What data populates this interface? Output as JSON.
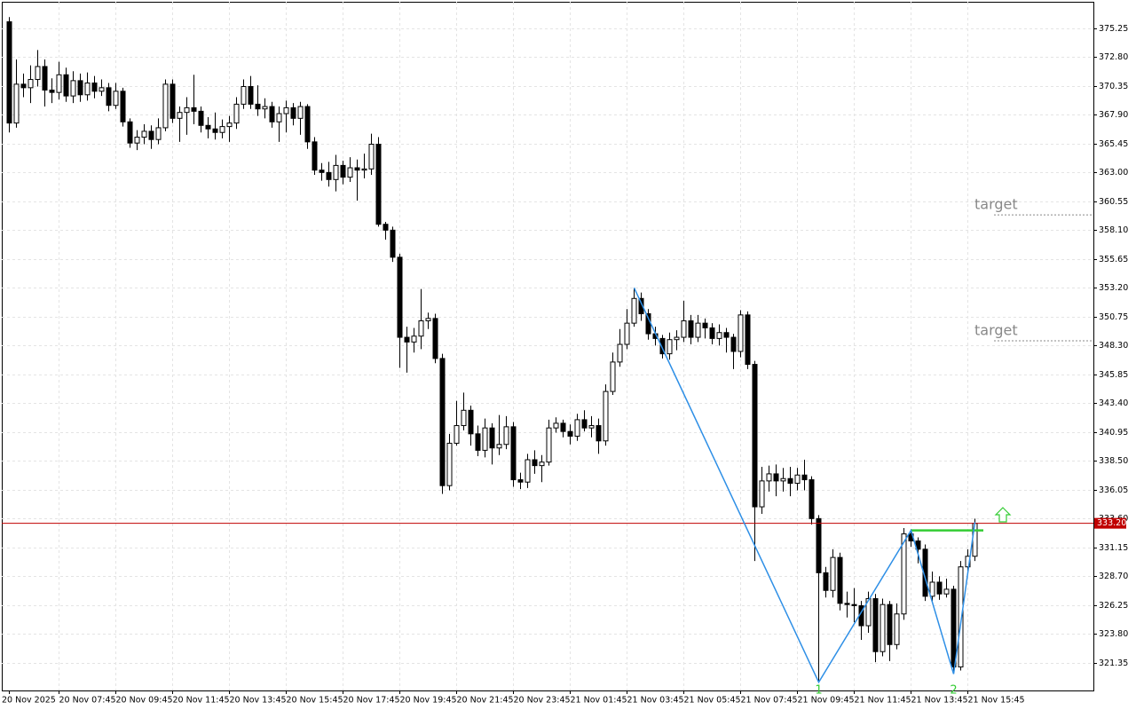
{
  "chart_data": {
    "type": "candlestick",
    "categories": [
      "20 Nov 2025",
      null,
      null,
      null,
      null,
      null,
      null,
      "20 Nov 07:45",
      null,
      null,
      null,
      null,
      null,
      null,
      null,
      "20 Nov 09:45",
      null,
      null,
      null,
      null,
      null,
      null,
      null,
      "20 Nov 11:45",
      null,
      null,
      null,
      null,
      null,
      null,
      null,
      "20 Nov 13:45",
      null,
      null,
      null,
      null,
      null,
      null,
      null,
      "20 Nov 15:45",
      null,
      null,
      null,
      null,
      null,
      null,
      null,
      "20 Nov 17:45",
      null,
      null,
      null,
      null,
      null,
      null,
      null,
      "20 Nov 19:45",
      null,
      null,
      null,
      null,
      null,
      null,
      null,
      "20 Nov 21:45",
      null,
      null,
      null,
      null,
      null,
      null,
      null,
      "20 Nov 23:45",
      null,
      null,
      null,
      null,
      null,
      null,
      null,
      "21 Nov 01:45",
      null,
      null,
      null,
      null,
      null,
      null,
      null,
      "21 Nov 03:45",
      null,
      null,
      null,
      null,
      null,
      null,
      null,
      "21 Nov 05:45",
      null,
      null,
      null,
      null,
      null,
      null,
      null,
      "21 Nov 07:45",
      null,
      null,
      null,
      null,
      null,
      null,
      null,
      "21 Nov 09:45",
      null,
      null,
      null,
      null,
      null,
      null,
      null,
      "21 Nov 11:45",
      null,
      null,
      null,
      null,
      null,
      null,
      null,
      "21 Nov 13:45",
      null,
      null,
      null,
      null,
      null,
      null,
      null,
      "21 Nov 15:45",
      null
    ],
    "open": [
      375.8,
      367.2,
      370.5,
      370.2,
      370.9,
      372.0,
      370.0,
      369.8,
      371.3,
      369.5,
      370.8,
      369.6,
      370.6,
      369.9,
      370.2,
      368.7,
      369.9,
      367.3,
      365.5,
      366.0,
      366.5,
      365.8,
      366.8,
      370.5,
      367.6,
      368.1,
      368.5,
      368.2,
      367.0,
      366.7,
      366.4,
      366.9,
      367.2,
      368.8,
      370.3,
      368.8,
      368.4,
      368.6,
      367.3,
      368.0,
      368.5,
      367.6,
      368.6,
      365.6,
      363.2,
      363.0,
      362.4,
      363.6,
      362.6,
      363.4,
      363.2,
      363.3,
      365.4,
      358.6,
      358.1,
      355.8,
      349.0,
      348.6,
      349.1,
      350.4,
      350.6,
      347.2,
      336.4,
      340.0,
      341.5,
      342.8,
      340.8,
      339.4,
      341.3,
      339.6,
      339.9,
      341.4,
      336.9,
      336.7,
      338.6,
      338.1,
      338.4,
      341.3,
      341.7,
      341.0,
      340.6,
      342.0,
      341.3,
      341.5,
      340.2,
      344.4,
      346.9,
      348.4,
      350.2,
      352.3,
      351.0,
      349.3,
      348.9,
      347.6,
      348.8,
      349.0,
      350.4,
      349.0,
      350.2,
      349.8,
      348.9,
      349.4,
      349.0,
      347.8,
      350.9,
      346.7,
      334.6,
      336.8,
      337.4,
      336.8,
      337.0,
      336.6,
      337.3,
      336.9,
      333.6,
      329.0,
      327.5,
      330.3,
      326.4,
      326.3,
      326.2,
      324.5,
      326.8,
      322.3,
      326.3,
      322.9,
      325.5,
      332.3,
      331.7,
      331.0,
      327.0,
      328.2,
      327.2,
      327.6,
      321.0,
      329.5,
      330.4
    ],
    "high": [
      376.2,
      372.6,
      371.4,
      372.1,
      373.4,
      372.6,
      371.0,
      372.4,
      371.9,
      371.6,
      371.4,
      371.5,
      371.2,
      370.9,
      370.6,
      370.6,
      370.2,
      367.6,
      366.6,
      367.1,
      367.0,
      367.6,
      370.9,
      370.9,
      368.6,
      369.4,
      371.3,
      368.6,
      367.7,
      368.1,
      367.5,
      367.8,
      369.4,
      370.9,
      371.2,
      370.4,
      369.3,
      369.0,
      368.6,
      369.1,
      368.9,
      369.0,
      368.8,
      366.0,
      363.8,
      363.9,
      364.5,
      364.0,
      364.3,
      364.1,
      364.6,
      366.3,
      366.0,
      358.8,
      358.4,
      356.1,
      349.9,
      349.8,
      353.1,
      351.1,
      351.0,
      347.6,
      340.8,
      343.6,
      344.3,
      343.2,
      341.5,
      342.1,
      341.7,
      342.4,
      342.3,
      341.8,
      337.5,
      339.1,
      339.4,
      339.0,
      342.0,
      342.2,
      342.0,
      341.6,
      342.5,
      342.8,
      342.3,
      342.1,
      345.0,
      347.7,
      349.7,
      351.4,
      353.2,
      352.8,
      351.4,
      349.9,
      349.2,
      349.4,
      349.6,
      352.1,
      350.9,
      350.9,
      350.6,
      350.2,
      350.1,
      349.8,
      349.3,
      351.3,
      351.2,
      347.0,
      338.0,
      338.1,
      338.2,
      337.9,
      338.0,
      337.9,
      338.6,
      337.2,
      333.9,
      329.5,
      331.0,
      330.7,
      327.4,
      327.7,
      326.6,
      327.4,
      327.2,
      326.8,
      326.6,
      326.4,
      332.8,
      332.7,
      332.0,
      331.4,
      329.1,
      328.7,
      328.5,
      327.9,
      330.0,
      331.0,
      333.6
    ],
    "low": [
      366.4,
      366.8,
      369.4,
      368.9,
      370.3,
      368.6,
      368.9,
      369.2,
      369.0,
      368.9,
      369.0,
      369.1,
      369.3,
      369.5,
      368.2,
      368.4,
      366.9,
      365.1,
      364.9,
      365.4,
      365.0,
      365.4,
      366.5,
      367.2,
      365.6,
      366.2,
      367.1,
      366.4,
      365.9,
      365.8,
      365.9,
      365.6,
      366.7,
      368.4,
      368.4,
      367.8,
      367.6,
      366.8,
      365.6,
      366.4,
      367.0,
      366.2,
      365.0,
      362.8,
      362.3,
      361.8,
      361.4,
      362.0,
      362.2,
      360.6,
      362.5,
      362.8,
      358.4,
      357.3,
      355.4,
      346.4,
      346.0,
      347.7,
      348.0,
      349.7,
      346.8,
      335.7,
      336.0,
      339.8,
      341.1,
      339.8,
      338.9,
      338.8,
      338.2,
      339.0,
      339.5,
      336.3,
      336.1,
      336.2,
      337.4,
      336.7,
      338.1,
      340.9,
      340.5,
      339.9,
      340.2,
      341.0,
      340.5,
      339.1,
      339.8,
      344.1,
      346.5,
      348.0,
      349.9,
      350.4,
      348.8,
      348.3,
      347.2,
      347.1,
      347.9,
      348.6,
      348.4,
      348.6,
      348.9,
      348.4,
      348.3,
      347.7,
      346.3,
      347.3,
      346.3,
      330.0,
      334.0,
      335.9,
      335.5,
      335.9,
      335.5,
      336.0,
      336.0,
      333.1,
      319.7,
      326.9,
      326.9,
      325.8,
      325.2,
      324.8,
      323.3,
      323.9,
      321.4,
      321.9,
      321.5,
      322.5,
      325.0,
      331.2,
      329.8,
      326.6,
      326.5,
      326.7,
      326.9,
      320.4,
      320.7,
      329.1,
      330.0
    ],
    "close": [
      367.2,
      370.5,
      370.2,
      370.9,
      372.0,
      370.0,
      369.8,
      371.3,
      369.5,
      370.8,
      369.6,
      370.6,
      369.9,
      370.2,
      368.7,
      369.9,
      367.3,
      365.5,
      366.0,
      366.5,
      365.8,
      366.8,
      370.5,
      367.6,
      368.1,
      368.5,
      368.2,
      367.0,
      366.7,
      366.4,
      366.9,
      367.2,
      368.8,
      370.3,
      368.8,
      368.4,
      368.6,
      367.3,
      368.0,
      368.5,
      367.6,
      368.6,
      365.6,
      363.2,
      363.0,
      362.4,
      363.6,
      362.6,
      363.4,
      363.2,
      363.3,
      365.4,
      358.6,
      358.1,
      355.8,
      349.0,
      348.6,
      349.1,
      350.4,
      350.6,
      347.2,
      336.4,
      340.0,
      341.5,
      342.8,
      340.8,
      339.4,
      341.3,
      339.6,
      339.9,
      341.4,
      336.9,
      336.7,
      338.6,
      338.1,
      338.4,
      341.3,
      341.7,
      341.0,
      340.6,
      342.0,
      341.3,
      341.5,
      340.2,
      344.4,
      346.9,
      348.4,
      350.2,
      352.3,
      351.0,
      349.3,
      348.9,
      347.6,
      348.8,
      349.0,
      350.4,
      349.0,
      350.2,
      349.8,
      348.9,
      349.4,
      349.0,
      347.8,
      350.9,
      346.7,
      334.6,
      336.8,
      337.4,
      336.8,
      337.0,
      336.6,
      337.3,
      336.9,
      333.6,
      329.0,
      327.5,
      330.3,
      326.4,
      326.3,
      326.2,
      324.5,
      326.8,
      322.3,
      326.3,
      322.9,
      325.5,
      332.3,
      331.7,
      331.0,
      327.0,
      328.2,
      327.2,
      327.6,
      321.0,
      329.5,
      330.4,
      333.2
    ],
    "ylim": [
      319.0,
      377.5
    ],
    "yticks": [
      375.25,
      {
        "value": 372.8,
        "label": "372.80"
      },
      370.35,
      {
        "value": 367.9,
        "label": "367.90"
      },
      365.45,
      {
        "value": 363.0,
        "label": "363.00"
      },
      360.55,
      {
        "value": 358.1,
        "label": "358.10"
      },
      355.65,
      {
        "value": 353.2,
        "label": "353.20"
      },
      350.75,
      {
        "value": 348.3,
        "label": "348.30"
      },
      345.85,
      {
        "value": 343.4,
        "label": "343.40"
      },
      {
        "value": 340.95,
        "label": "340.95"
      },
      {
        "value": 338.5,
        "label": "338.50"
      },
      336.05,
      {
        "value": 333.6,
        "label": "333.60"
      },
      331.15,
      {
        "value": 328.7,
        "label": "328.70"
      },
      326.25,
      {
        "value": 323.8,
        "label": "323.80"
      },
      321.35
    ],
    "grid": true,
    "bull_color": "#ffffff",
    "bear_color": "#000000",
    "last_price": {
      "value": 333.2,
      "label": "333.20"
    },
    "last_price_color": "#c00000",
    "zigzag": {
      "color": "#2e8fe6",
      "index": [
        88,
        114,
        127,
        133,
        136
      ],
      "values": [
        353.2,
        319.7,
        332.6,
        320.4,
        333.3
      ],
      "point_labels": [
        null,
        "1",
        null,
        "2",
        null
      ]
    },
    "breakout_level": {
      "value": 332.6,
      "color": "#33cc33"
    },
    "targets": [
      {
        "label": "target",
        "value": 359.4
      },
      {
        "label": "target",
        "value": 348.7
      }
    ]
  }
}
